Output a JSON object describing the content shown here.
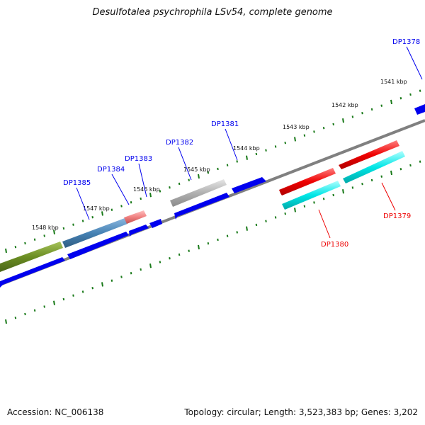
{
  "title": "Desulfotalea psychrophila LSv54, complete genome",
  "footer": {
    "accession": "Accession: NC_006138",
    "summary": "Topology: circular; Length: 3,523,383 bp; Genes: 3,202"
  },
  "colors": {
    "forward_gene": "#0000ee",
    "reverse_gene": "#ee0000",
    "highlight_red": "#e60000",
    "highlight_cyan": "#00e6e6",
    "highlight_gray": "#a8a8a8",
    "highlight_olive": "#6b8e23",
    "highlight_steel": "#4682b4",
    "highlight_pink": "#f08080",
    "backbone": "#808080",
    "tick": "#1a7a1a"
  },
  "scale_labels": [
    "1541 kbp",
    "1542 kbp",
    "1543 kbp",
    "1544 kbp",
    "1545 kbp",
    "1546 kbp",
    "1547 kbp",
    "1548 kbp"
  ],
  "gene_labels": [
    {
      "text": "DP1378",
      "strand": "forward"
    },
    {
      "text": "DP1379",
      "strand": "reverse"
    },
    {
      "text": "DP1380",
      "strand": "reverse"
    },
    {
      "text": "DP1381",
      "strand": "forward"
    },
    {
      "text": "DP1382",
      "strand": "forward"
    },
    {
      "text": "DP1383",
      "strand": "forward"
    },
    {
      "text": "DP1384",
      "strand": "forward"
    },
    {
      "text": "DP1385",
      "strand": "forward"
    }
  ]
}
